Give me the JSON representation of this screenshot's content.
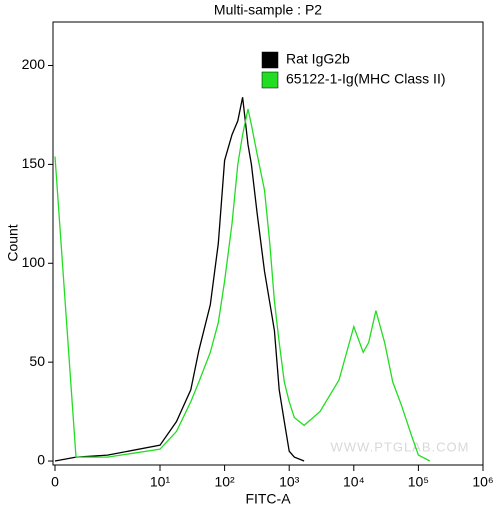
{
  "chart_data": {
    "type": "line",
    "title": "Multi-sample : P2",
    "xlabel": "FITC-A",
    "ylabel": "Count",
    "watermark": "WWW.PTGLAB.COM",
    "xscale": "biexponential",
    "x": [
      0,
      2,
      5,
      10,
      18,
      30,
      40,
      60,
      80,
      100,
      130,
      160,
      190,
      230,
      260,
      320,
      415,
      500,
      590,
      700,
      840,
      1000,
      1200,
      1700,
      3000,
      5900,
      10000,
      14000,
      17000,
      22000,
      30000,
      40000,
      55000,
      80000,
      100000,
      150000
    ],
    "series": [
      {
        "name": "Rat IgG2b",
        "color": "#000000",
        "values": [
          0,
          2,
          3,
          8,
          20,
          36,
          56,
          79,
          110,
          152,
          165,
          172,
          184,
          160,
          150,
          125,
          96,
          80,
          66,
          36,
          20,
          5,
          2,
          0,
          null,
          null,
          null,
          null,
          null,
          null,
          null,
          null,
          null,
          null,
          null,
          null
        ]
      },
      {
        "name": "65122-1-Ig(MHC Class II)",
        "color": "#22dd22",
        "values": [
          154,
          2,
          2,
          6,
          15,
          30,
          40,
          55,
          70,
          91,
          120,
          150,
          165,
          178,
          170,
          155,
          137,
          110,
          81,
          60,
          40,
          30,
          22,
          18,
          25,
          41,
          68,
          55,
          60,
          76,
          60,
          40,
          28,
          12,
          3,
          0
        ]
      }
    ],
    "xlim": [
      0,
      1000000
    ],
    "xticks": [
      0,
      {
        "value": 10,
        "label": "10¹"
      },
      {
        "value": 100,
        "label": "10²"
      },
      {
        "value": 1000,
        "label": "10³"
      },
      {
        "value": 10000,
        "label": "10⁴"
      },
      {
        "value": 100000,
        "label": "10⁵"
      },
      {
        "value": 1000000,
        "label": "10⁶"
      }
    ],
    "ylim": [
      -2,
      222
    ],
    "yticks": [
      0,
      50,
      100,
      150,
      200
    ]
  }
}
